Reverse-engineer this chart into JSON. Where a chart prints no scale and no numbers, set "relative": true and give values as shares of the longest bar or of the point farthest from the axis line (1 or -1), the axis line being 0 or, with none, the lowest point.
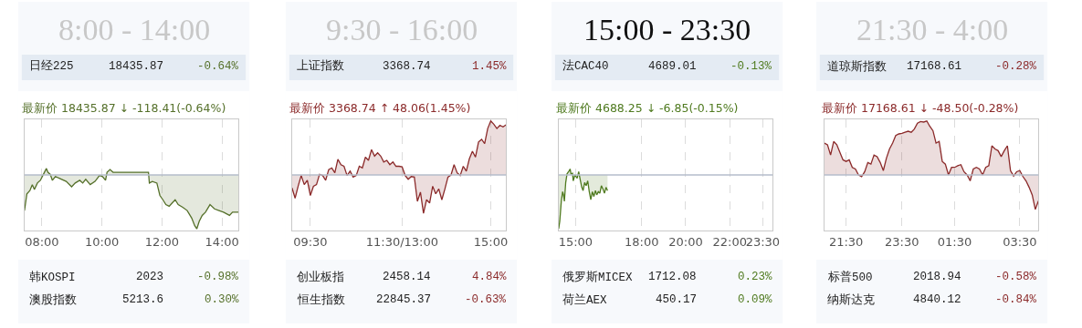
{
  "chart_data": [
    {
      "type": "area",
      "title": "8:00 - 14:00",
      "subtitle": "最新价 18435.87 ↓ -118.41(-0.64%)",
      "relative": true,
      "tick_labels": "x",
      "grid": "x",
      "annotations": [
        "日经225",
        "18435.87",
        "-0.64%",
        "韩KOSPI",
        "2023",
        "-0.98%",
        "澳股指数",
        "5213.6",
        "0.30%"
      ],
      "xlim": [
        7.42,
        14.55
      ],
      "xticks": [
        {
          "value": 8,
          "label": "08:00"
        },
        {
          "value": 10,
          "label": "10:00"
        },
        {
          "value": 12,
          "label": "12:00"
        },
        {
          "value": 14,
          "label": "14:00"
        }
      ],
      "ref_lines": [
        {
          "axis": "y",
          "value": 0,
          "color": "#b4bccb"
        }
      ],
      "x": [
        7.42,
        7.5,
        7.6,
        7.68,
        7.75,
        7.85,
        7.95,
        8.05,
        8.15,
        8.2,
        8.28,
        8.35,
        8.45,
        8.61,
        8.81,
        8.99,
        9.11,
        9.26,
        9.36,
        9.46,
        9.61,
        9.77,
        9.92,
        10.02,
        10.12,
        10.17,
        10.27,
        10.37,
        11.55,
        11.58,
        11.68,
        11.83,
        11.93,
        12.03,
        12.13,
        12.24,
        12.34,
        12.44,
        12.54,
        12.69,
        12.84,
        12.99,
        13.09,
        13.16,
        13.24,
        13.34,
        13.45,
        13.6,
        13.75,
        13.9,
        14.05,
        14.25,
        14.35,
        14.55
      ],
      "series": [
        {
          "color": "#55702a",
          "values": [
            -0.66,
            -0.35,
            -0.29,
            -0.18,
            -0.27,
            -0.15,
            -0.1,
            0.01,
            0.12,
            0.05,
            0.01,
            -0.1,
            -0.03,
            -0.07,
            -0.12,
            -0.22,
            -0.15,
            -0.1,
            -0.15,
            -0.08,
            -0.18,
            -0.12,
            -0.01,
            -0.03,
            -0.1,
            0.05,
            0.1,
            0.05,
            0.05,
            -0.15,
            -0.12,
            -0.15,
            -0.38,
            -0.46,
            -0.55,
            -0.58,
            -0.52,
            -0.46,
            -0.55,
            -0.6,
            -0.66,
            -0.8,
            -0.94,
            -1,
            -0.86,
            -0.75,
            -0.69,
            -0.55,
            -0.63,
            -0.66,
            -0.69,
            -0.75,
            -0.69,
            -0.69
          ]
        }
      ]
    },
    {
      "type": "area",
      "title": "9:30 - 16:00",
      "subtitle": "最新价 3368.74 ↑ 48.06(1.45%)",
      "relative": true,
      "tick_labels": "x",
      "grid": "x",
      "annotations": [
        "上证指数",
        "3368.74",
        "1.45%",
        "创业板指",
        "2458.14",
        "4.84%",
        "恒生指数",
        "22845.37",
        "-0.63%"
      ],
      "categories": [
        null,
        null,
        null,
        null,
        null,
        null,
        "09:30",
        null,
        null,
        null,
        null,
        null,
        null,
        null,
        null,
        null,
        null,
        null,
        null,
        null,
        null,
        null,
        null,
        null,
        null,
        null,
        null,
        null,
        null,
        null,
        null,
        null,
        null,
        null,
        null,
        null,
        "11:30/13:00",
        null,
        null,
        null,
        null,
        null,
        null,
        null,
        null,
        null,
        null,
        null,
        null,
        null,
        null,
        null,
        null,
        null,
        null,
        null,
        null,
        null,
        null,
        null,
        null,
        null,
        null,
        null,
        null,
        "15:00",
        null,
        null,
        null,
        null,
        null
      ],
      "ref_lines": [
        {
          "axis": "y",
          "value": 0,
          "color": "#b4bccb"
        }
      ],
      "series": [
        {
          "color": "#8b2a2a",
          "values": [
            -0.24,
            -0.43,
            -0.21,
            -0.01,
            -0.18,
            -0.1,
            -0.38,
            -0.21,
            -0.18,
            0.01,
            -0.01,
            -0.1,
            0.1,
            0.13,
            0.04,
            0.29,
            0.19,
            0.16,
            -0.01,
            0.07,
            -0.04,
            -0.01,
            0.16,
            0.13,
            0.33,
            0.27,
            0.47,
            0.35,
            0.41,
            0.35,
            0.24,
            0.27,
            0.19,
            0.24,
            0.16,
            0.16,
            0.15,
            -0.01,
            -0.08,
            -0.03,
            -0.04,
            -0.49,
            -0.32,
            -0.71,
            -0.46,
            -0.52,
            -0.21,
            -0.35,
            -0.26,
            -0.46,
            -0.26,
            -0.04,
            0,
            0.19,
            0.04,
            -0.01,
            0.16,
            0.07,
            0.3,
            0.44,
            0.33,
            0.61,
            0.66,
            0.58,
            0.86,
            1,
            0.94,
            0.86,
            0.92,
            0.89,
            0.93
          ]
        }
      ]
    },
    {
      "type": "area",
      "title": "15:00 - 23:30",
      "subtitle": "最新价 4688.25 ↓ -6.85(-0.15%)",
      "relative": true,
      "tick_labels": "x",
      "grid": "x",
      "annotations": [
        "法CAC40",
        "4689.01",
        "-0.13%",
        "俄罗斯MICEX",
        "1712.08",
        "0.23%",
        "荷兰AEX",
        "450.17",
        "0.09%"
      ],
      "xlim": [
        14.23,
        23.95
      ],
      "xticks": [
        {
          "value": 15,
          "label": "15:00"
        },
        {
          "value": 18,
          "label": "18:00"
        },
        {
          "value": 20,
          "label": "20:00"
        },
        {
          "value": 22,
          "label": "22:00"
        },
        {
          "value": 23.5,
          "label": "23:30"
        }
      ],
      "ref_lines": [
        {
          "axis": "y",
          "value": 0,
          "color": "#b4bccb"
        }
      ],
      "x": [
        14.23,
        14.28,
        14.35,
        14.41,
        14.45,
        14.49,
        14.55,
        14.61,
        14.68,
        14.75,
        14.79,
        14.86,
        14.89,
        14.97,
        15.07,
        15.14,
        15.21,
        15.28,
        15.34,
        15.41,
        15.48,
        15.55,
        15.62,
        15.69,
        15.76,
        15.83,
        15.9,
        15.96,
        16.03,
        16.1,
        16.17,
        16.24,
        16.31,
        16.38,
        16.45
      ],
      "series": [
        {
          "color": "#4f7a1f",
          "values": [
            -1,
            -0.86,
            -0.49,
            -0.31,
            -0.37,
            -0.49,
            -0.14,
            0.02,
            0.06,
            0.11,
            0.02,
            0.03,
            -0.11,
            0,
            -0.06,
            0.06,
            -0.09,
            -0.23,
            -0.29,
            -0.14,
            -0.2,
            -0.11,
            -0.31,
            -0.46,
            -0.31,
            -0.4,
            -0.29,
            -0.37,
            -0.31,
            -0.34,
            -0.2,
            -0.26,
            -0.34,
            -0.23,
            -0.29
          ]
        }
      ]
    },
    {
      "type": "area",
      "title": "21:30 - 4:00",
      "subtitle": "最新价 17168.61 ↓ -48.50(-0.28%)",
      "relative": true,
      "tick_labels": "x",
      "grid": "x",
      "annotations": [
        "道琼斯指数",
        "17168.61",
        "-0.28%",
        "标普500",
        "2018.94",
        "-0.58%",
        "纳斯达克",
        "4840.12",
        "-0.84%"
      ],
      "categories": [
        null,
        null,
        null,
        null,
        null,
        null,
        null,
        "21:30",
        null,
        null,
        null,
        null,
        null,
        null,
        null,
        null,
        null,
        null,
        null,
        null,
        null,
        null,
        null,
        null,
        null,
        "23:30",
        null,
        null,
        null,
        null,
        null,
        null,
        null,
        null,
        null,
        null,
        null,
        null,
        null,
        null,
        null,
        null,
        "01:30",
        null,
        null,
        null,
        null,
        null,
        null,
        null,
        null,
        null,
        null,
        null,
        null,
        null,
        null,
        null,
        null,
        null,
        null,
        null,
        null,
        "03:30",
        null,
        null,
        null,
        null,
        null,
        null
      ],
      "ref_lines": [
        {
          "axis": "y",
          "value": 0,
          "color": "#b4bccb"
        }
      ],
      "series": [
        {
          "color": "#8b2a2a",
          "values": [
            0.59,
            0.56,
            0.37,
            0.62,
            0.56,
            0.42,
            0.28,
            0.25,
            0.28,
            0.14,
            0.11,
            0,
            -0.03,
            0.06,
            0.23,
            0.2,
            0.37,
            0.34,
            0.23,
            0.08,
            0.31,
            0.48,
            0.59,
            0.73,
            0.76,
            0.77,
            0.79,
            0.81,
            0.79,
            0.85,
            0.96,
            0.99,
            0.98,
            1,
            0.9,
            0.82,
            0.59,
            0.62,
            0.25,
            0.2,
            0,
            0.14,
            0.14,
            0.17,
            0.19,
            0.06,
            0,
            -0.11,
            0.11,
            0.14,
            0.11,
            0,
            0.14,
            0.17,
            0.54,
            0.48,
            0.45,
            0.34,
            0.45,
            0.54,
            0.08,
            -0.02,
            0.06,
            0.08,
            -0.03,
            -0.11,
            -0.23,
            -0.37,
            -0.64,
            -0.48
          ]
        }
      ]
    }
  ]
}
